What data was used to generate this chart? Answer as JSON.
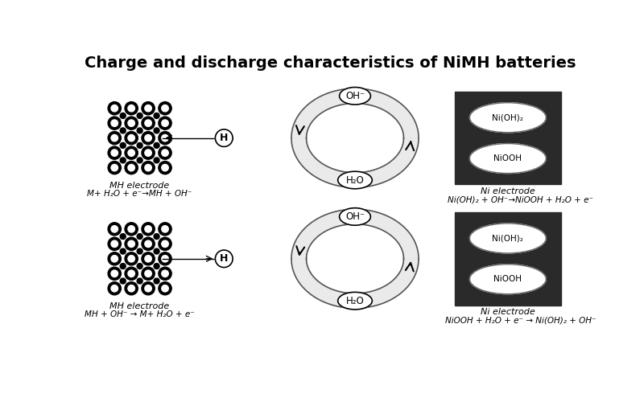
{
  "title": "Charge and discharge characteristics of NiMH batteries",
  "title_fontsize": 14,
  "title_fontweight": "bold",
  "background_color": "#ffffff",
  "top_section": {
    "mh_label": "MH electrode",
    "mh_equation": "M+ H₂O + e⁻→MH + OH⁻",
    "ni_label": "Ni electrode",
    "ni_equation": "Ni(OH)₂ + OH⁻→NiOOH + H₂O + e⁻",
    "cycle_top": "OH⁻",
    "cycle_bottom": "H₂O",
    "h_label": "H",
    "ni_top_compound": "Ni(OH)₂",
    "ni_bottom_compound": "NiOOH",
    "arrow_direction": "left"
  },
  "bottom_section": {
    "mh_label": "MH electrode",
    "mh_equation": "MH + OH⁻ → M+ H₂O + e⁻",
    "ni_label": "Ni electrode",
    "ni_equation": "NiOOH + H₂O + e⁻ → Ni(OH)₂ + OH⁻",
    "cycle_top": "OH⁻",
    "cycle_bottom": "H₂O",
    "h_label": "H",
    "ni_top_compound": "Ni(OH)₂",
    "ni_bottom_compound": "NiOOH",
    "arrow_direction": "right"
  }
}
